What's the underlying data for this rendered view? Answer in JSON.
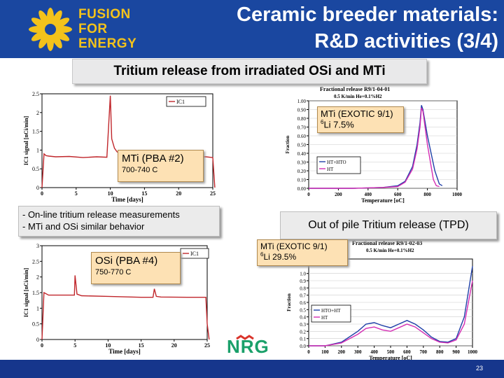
{
  "header": {
    "logo_line1": "FUSION",
    "logo_line2": "FOR",
    "logo_line3": "ENERGY",
    "title_line1": "Ceramic breeder materials:",
    "title_line2": "R&D activities (3/4)"
  },
  "subtitle": "Tritium release from irradiated OSi and MTi",
  "labels": {
    "mti_exotic_top_name": "MTi (EXOTIC 9/1)",
    "mti_exotic_top_li": "Li 7.5%",
    "mti_pba_name": "MTi (PBA #2)",
    "mti_pba_temp": "700-740 C",
    "osi_pba_name": "OSi (PBA #4)",
    "osi_pba_temp": "750-770 C",
    "mti_exotic_bottom_name": "MTi (EXOTIC 9/1)",
    "mti_exotic_bottom_li": "Li 29.5%",
    "li_superscript": "6"
  },
  "notes": {
    "line1": "- On-line tritium release measurements",
    "line2": "- MTi and OSi similar behavior"
  },
  "tpd_title": "Out of pile Tritium release (TPD)",
  "footer": {
    "page_number": "23"
  },
  "colors": {
    "header_blue": "#1a47a0",
    "logo_yellow": "#f3c21b",
    "trace_red": "#c0262b",
    "hto_blue": "#1f3fa8",
    "ht_magenta": "#d42db3"
  },
  "nrg_logo": "NRG",
  "chart_data": [
    {
      "type": "line",
      "title": "",
      "xlabel": "Time [days]",
      "ylabel": "IC1 signal [nCi/min]",
      "legend": [
        "IC1"
      ],
      "xlim": [
        0,
        25
      ],
      "ylim": [
        0,
        2.5
      ],
      "x_ticks": [
        "0",
        "5",
        "10",
        "15",
        "20",
        "25"
      ],
      "y_ticks": [
        "0",
        "0.5",
        "1",
        "1.5",
        "2",
        "2.5"
      ],
      "series": [
        {
          "name": "IC1",
          "x": [
            0,
            0.3,
            0.6,
            1,
            2,
            4,
            6,
            8,
            9.5,
            10,
            10.2,
            10.6,
            11,
            13,
            15,
            17,
            20,
            22,
            24,
            25,
            25.3
          ],
          "y": [
            0,
            0.9,
            0.85,
            0.84,
            0.82,
            0.83,
            0.8,
            0.82,
            0.81,
            2.45,
            1.3,
            1.05,
            0.95,
            0.9,
            0.88,
            0.85,
            0.84,
            0.82,
            0.82,
            0.8,
            0
          ]
        }
      ]
    },
    {
      "type": "line",
      "title": "Fractional release R9/1-04-01",
      "subtitle": "0.5 K/min He+0.1%H2",
      "xlabel": "Temperature [oC]",
      "ylabel": "Fraction",
      "legend": [
        "HT+HTO",
        "HT"
      ],
      "xlim": [
        0,
        1000
      ],
      "ylim": [
        0,
        1
      ],
      "x_ticks": [
        "0",
        "200",
        "400",
        "600",
        "800",
        "1000"
      ],
      "y_ticks": [
        "0.00",
        "0.10",
        "0.20",
        "0.30",
        "0.40",
        "0.50",
        "0.60",
        "0.70",
        "0.80",
        "0.90",
        "1.00"
      ],
      "series": [
        {
          "name": "HT+HTO",
          "x": [
            0,
            300,
            500,
            600,
            650,
            700,
            730,
            750,
            760,
            770,
            800,
            850,
            880,
            900
          ],
          "y": [
            0,
            0,
            0.01,
            0.03,
            0.08,
            0.25,
            0.5,
            0.75,
            0.95,
            0.9,
            0.6,
            0.2,
            0.05,
            0.03
          ]
        },
        {
          "name": "HT",
          "x": [
            0,
            300,
            500,
            600,
            650,
            700,
            730,
            750,
            760,
            770,
            800,
            840,
            860,
            880
          ],
          "y": [
            0,
            0,
            0.01,
            0.02,
            0.07,
            0.22,
            0.45,
            0.7,
            0.92,
            0.88,
            0.5,
            0.1,
            0.03,
            0.02
          ]
        }
      ]
    },
    {
      "type": "line",
      "title": "",
      "xlabel": "Time [days]",
      "ylabel": "IC1 signal [nCi/min]",
      "legend": [
        "IC1"
      ],
      "xlim": [
        0,
        25
      ],
      "ylim": [
        0,
        3
      ],
      "x_ticks": [
        "0",
        "5",
        "10",
        "15",
        "20",
        "25"
      ],
      "y_ticks": [
        "0",
        "0.5",
        "1",
        "1.5",
        "2",
        "2.5",
        "3"
      ],
      "series": [
        {
          "name": "IC1",
          "x": [
            0,
            0.3,
            1,
            3,
            4.9,
            5,
            5.3,
            6,
            10,
            15,
            16.8,
            17,
            17.3,
            18,
            22,
            24,
            24.8,
            25,
            25.3
          ],
          "y": [
            0,
            1.5,
            1.42,
            1.42,
            1.42,
            2.05,
            1.45,
            1.4,
            1.38,
            1.35,
            1.35,
            1.62,
            1.38,
            1.36,
            1.35,
            1.35,
            1.35,
            0.5,
            0
          ]
        }
      ]
    },
    {
      "type": "line",
      "title": "Fractional release R9/1-02-03",
      "subtitle": "0.5 K/min He+0.1%H2",
      "xlabel": "Temperature [oC]",
      "ylabel": "Fraction",
      "legend": [
        "HTO+HT",
        "HT"
      ],
      "xlim": [
        0,
        1000
      ],
      "ylim": [
        0,
        1.2
      ],
      "x_ticks": [
        "0",
        "100",
        "200",
        "300",
        "400",
        "500",
        "600",
        "700",
        "800",
        "900",
        "1000"
      ],
      "y_ticks": [
        "0.0",
        "0.1",
        "0.2",
        "0.3",
        "0.4",
        "0.5",
        "0.6",
        "0.7",
        "0.8",
        "0.9",
        "1.0"
      ],
      "series": [
        {
          "name": "HTO+HT",
          "x": [
            0,
            100,
            200,
            300,
            350,
            400,
            450,
            500,
            550,
            600,
            650,
            700,
            750,
            800,
            850,
            900,
            950,
            1000
          ],
          "y": [
            0,
            0,
            0.05,
            0.2,
            0.3,
            0.32,
            0.28,
            0.25,
            0.3,
            0.35,
            0.3,
            0.22,
            0.12,
            0.06,
            0.05,
            0.1,
            0.4,
            1.1
          ]
        },
        {
          "name": "HT",
          "x": [
            0,
            100,
            200,
            300,
            350,
            400,
            450,
            500,
            550,
            600,
            650,
            700,
            750,
            800,
            850,
            900,
            950,
            1000
          ],
          "y": [
            0,
            0,
            0.04,
            0.16,
            0.24,
            0.26,
            0.22,
            0.2,
            0.25,
            0.3,
            0.26,
            0.18,
            0.1,
            0.05,
            0.04,
            0.08,
            0.3,
            0.9
          ]
        }
      ]
    }
  ]
}
